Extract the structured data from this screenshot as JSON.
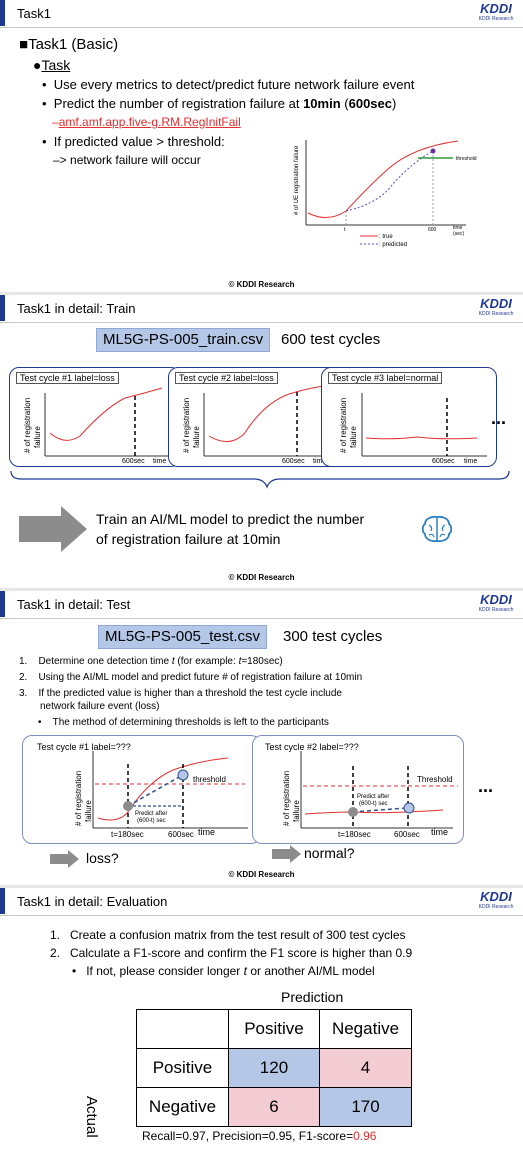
{
  "slide1": {
    "title": "Task1",
    "heading": "Task1 (Basic)",
    "task_label": "Task",
    "bullets": [
      "Use every metrics to detect/predict future network failure event",
      "Predict the number of registration failure at ",
      "If predicted value > threshold:"
    ],
    "bold_10min": "10min",
    "paren_open": " (",
    "bold_600sec": "600sec",
    "paren_close": ")",
    "metric_name": "amf.amf.app.five-g.RM.RegInitFail",
    "arrow_line": "–> network failure will occur",
    "chart": {
      "ylabel": "# of UE registration failure",
      "threshold": "threshold",
      "t": "t",
      "x600": "600",
      "time": "time",
      "sec": "(sec)",
      "legend_true": ": true",
      "legend_pred": ": predicted"
    },
    "footer": "© KDDI Research"
  },
  "slide2": {
    "title": "Task1 in detail: Train",
    "csv": "ML5G-PS-005_train.csv",
    "cycles_text": "600 test cycles",
    "cycles": [
      {
        "label": "Test cycle #1 label=loss"
      },
      {
        "label": "Test cycle #2 label=loss"
      },
      {
        "label": "Test cycle #3 label=normal"
      }
    ],
    "ylabel_a": "# of registration",
    "ylabel_b": "failure",
    "x600": "600sec",
    "time": "time",
    "ellipsis": "...",
    "train_line1": "Train an AI/ML model to predict the number",
    "train_line2": "of registration failure at 10min",
    "footer": "© KDDI Research"
  },
  "slide3": {
    "title": "Task1 in detail: Test",
    "csv": "ML5G-PS-005_test.csv",
    "cycles_text": "300 test cycles",
    "step1a": "Determine one detection time ",
    "step1t": "t",
    "step1b": " (for example: ",
    "step1c": "t",
    "step1d": "=180sec)",
    "step2": "Using the AI/ML model and predict future # of registration failure at 10min",
    "step3a": "If the predicted value is higher than a threshold the test cycle include",
    "step3b": "network failure event (loss)",
    "sub": "The method of determining thresholds is left to the participants",
    "cycles": [
      {
        "label": "Test cycle #1 label=???",
        "threshold": "threshold",
        "pred": "Predict after",
        "pred2": "(600-t) sec",
        "t": "t=180sec",
        "x600": "600sec",
        "time": "time",
        "result": "loss?"
      },
      {
        "label": "Test cycle #2 label=???",
        "threshold": "Threshold",
        "pred": "Predict after",
        "pred2": "(600-t) sec",
        "t": "t=180sec",
        "x600": "600sec",
        "time": "time",
        "result": "normal?"
      }
    ],
    "ylabel_a": "# of registration",
    "ylabel_b": "failure",
    "ellipsis": "...",
    "footer": "© KDDI Research"
  },
  "slide4": {
    "title": "Task1 in detail: Evaluation",
    "step1": "Create a confusion matrix from the test result of 300 test cycles",
    "step2": "Calculate a F1-score and confirm the F1 score is higher than 0.9",
    "sub_a": "If not, please consider longer ",
    "sub_t": "t",
    "sub_b": " or another AI/ML model",
    "prediction": "Prediction",
    "actual": "Actual",
    "col_pos": "Positive",
    "col_neg": "Negative",
    "row_pos": "Positive",
    "row_neg": "Negative",
    "tp": "120",
    "fn": "4",
    "fp": "6",
    "tn": "170",
    "metrics_prefix": "Recall=0.97, Precision=0.95, F1-score=",
    "f1": "0.96",
    "accent_red": "#e03030"
  },
  "logo": {
    "mark": "KDDI",
    "sub": "KDDI Research"
  }
}
